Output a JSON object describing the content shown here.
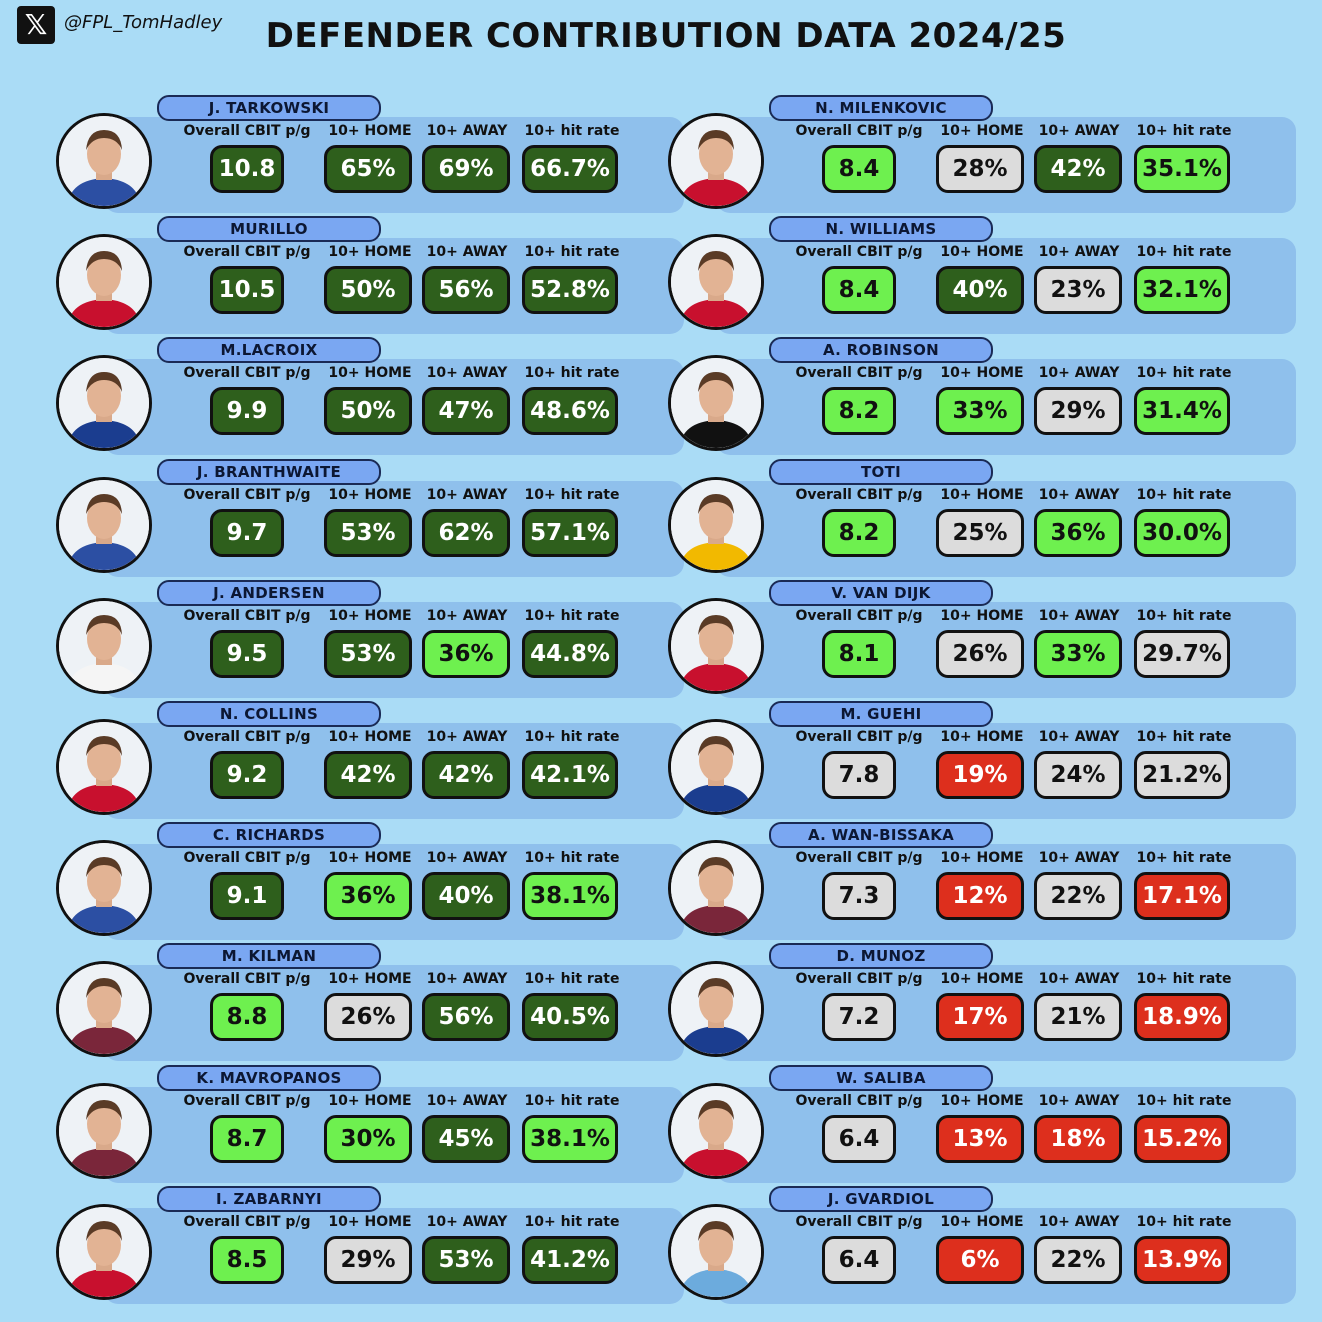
{
  "header": {
    "logo_icon": "x-logo-icon",
    "handle": "@FPL_TomHadley",
    "title": "DEFENDER CONTRIBUTION DATA 2024/25"
  },
  "labels": {
    "cbit": "Overall CBIT p/g",
    "home": "10+ HOME",
    "away": "10+ AWAY",
    "hit": "10+ hit rate"
  },
  "colors": {
    "dark_green": "#2e5f1c",
    "light_green": "#6ef04f",
    "grey": "#dcdcdc",
    "red": "#dd2f1d"
  },
  "left": [
    {
      "name": "J. TARKOWSKI",
      "cbit": "10.8",
      "home": "65%",
      "away": "69%",
      "hit": "66.7%",
      "c": [
        "dg",
        "dg",
        "dg",
        "dg"
      ]
    },
    {
      "name": "MURILLO",
      "cbit": "10.5",
      "home": "50%",
      "away": "56%",
      "hit": "52.8%",
      "c": [
        "dg",
        "dg",
        "dg",
        "dg"
      ]
    },
    {
      "name": "M.LACROIX",
      "cbit": "9.9",
      "home": "50%",
      "away": "47%",
      "hit": "48.6%",
      "c": [
        "dg",
        "dg",
        "dg",
        "dg"
      ]
    },
    {
      "name": "J. BRANTHWAITE",
      "cbit": "9.7",
      "home": "53%",
      "away": "62%",
      "hit": "57.1%",
      "c": [
        "dg",
        "dg",
        "dg",
        "dg"
      ]
    },
    {
      "name": "J. ANDERSEN",
      "cbit": "9.5",
      "home": "53%",
      "away": "36%",
      "hit": "44.8%",
      "c": [
        "dg",
        "dg",
        "lg",
        "dg"
      ]
    },
    {
      "name": "N. COLLINS",
      "cbit": "9.2",
      "home": "42%",
      "away": "42%",
      "hit": "42.1%",
      "c": [
        "dg",
        "dg",
        "dg",
        "dg"
      ]
    },
    {
      "name": "C. RICHARDS",
      "cbit": "9.1",
      "home": "36%",
      "away": "40%",
      "hit": "38.1%",
      "c": [
        "dg",
        "lg",
        "dg",
        "lg"
      ]
    },
    {
      "name": "M. KILMAN",
      "cbit": "8.8",
      "home": "26%",
      "away": "56%",
      "hit": "40.5%",
      "c": [
        "lg",
        "gy",
        "dg",
        "dg"
      ]
    },
    {
      "name": "K. MAVROPANOS",
      "cbit": "8.7",
      "home": "30%",
      "away": "45%",
      "hit": "38.1%",
      "c": [
        "lg",
        "lg",
        "dg",
        "lg"
      ]
    },
    {
      "name": "I. ZABARNYI",
      "cbit": "8.5",
      "home": "29%",
      "away": "53%",
      "hit": "41.2%",
      "c": [
        "lg",
        "gy",
        "dg",
        "dg"
      ]
    }
  ],
  "right": [
    {
      "name": "N. MILENKOVIC",
      "cbit": "8.4",
      "home": "28%",
      "away": "42%",
      "hit": "35.1%",
      "c": [
        "lg",
        "gy",
        "dg",
        "lg"
      ]
    },
    {
      "name": "N. WILLIAMS",
      "cbit": "8.4",
      "home": "40%",
      "away": "23%",
      "hit": "32.1%",
      "c": [
        "lg",
        "dg",
        "gy",
        "lg"
      ]
    },
    {
      "name": "A. ROBINSON",
      "cbit": "8.2",
      "home": "33%",
      "away": "29%",
      "hit": "31.4%",
      "c": [
        "lg",
        "lg",
        "gy",
        "lg"
      ]
    },
    {
      "name": "TOTI",
      "cbit": "8.2",
      "home": "25%",
      "away": "36%",
      "hit": "30.0%",
      "c": [
        "lg",
        "gy",
        "lg",
        "lg"
      ]
    },
    {
      "name": "V. VAN DIJK",
      "cbit": "8.1",
      "home": "26%",
      "away": "33%",
      "hit": "29.7%",
      "c": [
        "lg",
        "gy",
        "lg",
        "gy"
      ]
    },
    {
      "name": "M. GUEHI",
      "cbit": "7.8",
      "home": "19%",
      "away": "24%",
      "hit": "21.2%",
      "c": [
        "gy",
        "rd",
        "gy",
        "gy"
      ]
    },
    {
      "name": "A. WAN-BISSAKA",
      "cbit": "7.3",
      "home": "12%",
      "away": "22%",
      "hit": "17.1%",
      "c": [
        "gy",
        "rd",
        "gy",
        "rd"
      ]
    },
    {
      "name": "D. MUNOZ",
      "cbit": "7.2",
      "home": "17%",
      "away": "21%",
      "hit": "18.9%",
      "c": [
        "gy",
        "rd",
        "gy",
        "rd"
      ]
    },
    {
      "name": "W. SALIBA",
      "cbit": "6.4",
      "home": "13%",
      "away": "18%",
      "hit": "15.2%",
      "c": [
        "gy",
        "rd",
        "rd",
        "rd"
      ]
    },
    {
      "name": "J. GVARDIOL",
      "cbit": "6.4",
      "home": "6%",
      "away": "22%",
      "hit": "13.9%",
      "c": [
        "gy",
        "rd",
        "gy",
        "rd"
      ]
    }
  ]
}
